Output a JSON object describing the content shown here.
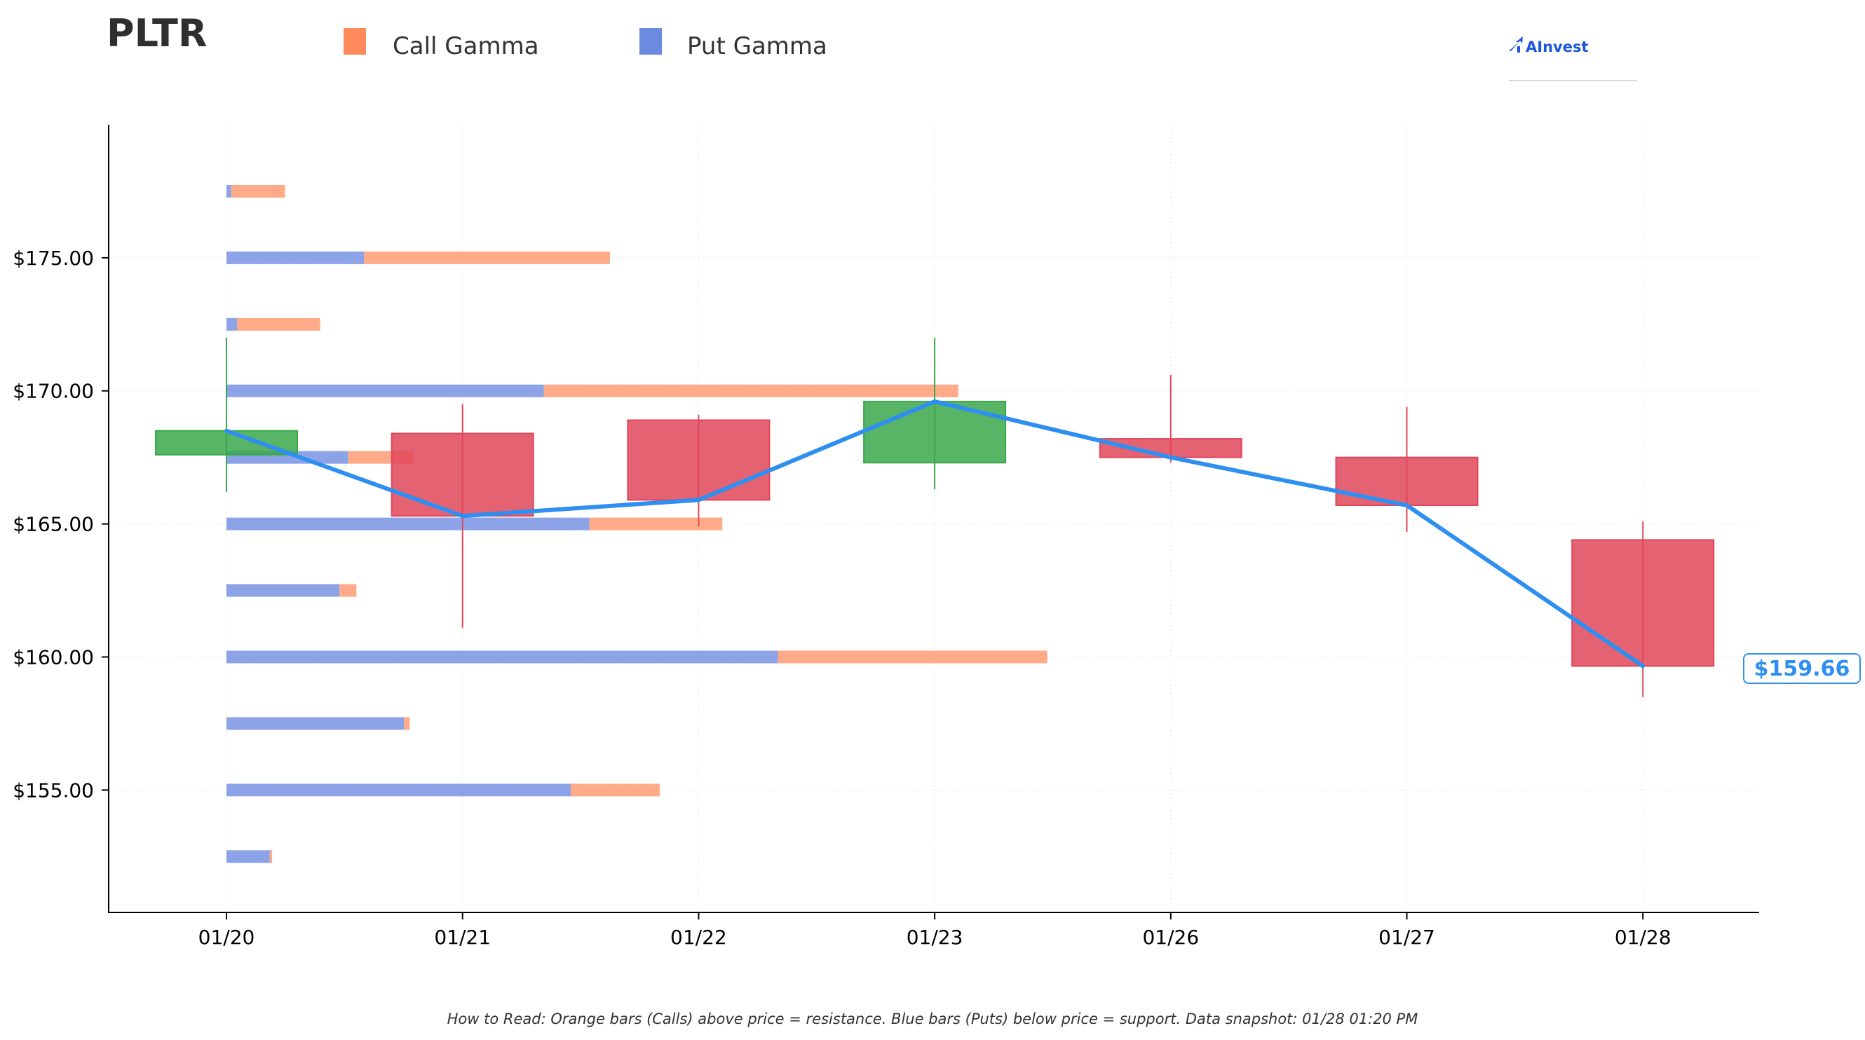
{
  "chart_data": {
    "type": "candlestick",
    "title": "PLTR",
    "legend": {
      "placement": "top",
      "entries": [
        {
          "label": "Call Gamma",
          "color": "#ff8a5c"
        },
        {
          "label": "Put Gamma",
          "color": "#6b8be0"
        }
      ]
    },
    "brand": "AInvest",
    "x_categories": [
      "01/20",
      "01/21",
      "01/22",
      "01/23",
      "01/26",
      "01/27",
      "01/28"
    ],
    "y_ticks": [
      "$155.00",
      "$160.00",
      "$165.00",
      "$170.00",
      "$175.00"
    ],
    "ylim": [
      150.4,
      180.0
    ],
    "grid": true,
    "candles": [
      {
        "date": "01/20",
        "open": 167.6,
        "high": 172.0,
        "low": 166.2,
        "close": 168.5,
        "color": "#3aa84a"
      },
      {
        "date": "01/21",
        "open": 168.4,
        "high": 169.5,
        "low": 161.1,
        "close": 165.3,
        "color": "#e0475a"
      },
      {
        "date": "01/22",
        "open": 168.9,
        "high": 169.1,
        "low": 164.9,
        "close": 165.9,
        "color": "#e0475a"
      },
      {
        "date": "01/23",
        "open": 167.3,
        "high": 172.0,
        "low": 166.3,
        "close": 169.6,
        "color": "#3aa84a"
      },
      {
        "date": "01/26",
        "open": 168.2,
        "high": 170.6,
        "low": 167.3,
        "close": 167.5,
        "color": "#e0475a"
      },
      {
        "date": "01/27",
        "open": 167.5,
        "high": 169.4,
        "low": 164.7,
        "close": 165.7,
        "color": "#e0475a"
      },
      {
        "date": "01/28",
        "open": 164.4,
        "high": 165.1,
        "low": 158.5,
        "close": 159.66,
        "color": "#e0475a"
      }
    ],
    "price_line": {
      "color": "#2f8ff0",
      "values": [
        168.5,
        165.3,
        165.9,
        169.6,
        167.5,
        165.7,
        159.66
      ]
    },
    "gamma_bars": [
      {
        "strike": 177.5,
        "put": 0.08,
        "call": 1.0
      },
      {
        "strike": 175.0,
        "put": 2.35,
        "call": 6.55
      },
      {
        "strike": 172.5,
        "put": 0.18,
        "call": 1.6
      },
      {
        "strike": 170.0,
        "put": 5.42,
        "call": 12.5
      },
      {
        "strike": 167.5,
        "put": 2.08,
        "call": 3.2
      },
      {
        "strike": 165.0,
        "put": 6.2,
        "call": 8.47
      },
      {
        "strike": 162.5,
        "put": 1.93,
        "call": 2.22
      },
      {
        "strike": 160.0,
        "put": 9.42,
        "call": 14.02
      },
      {
        "strike": 157.5,
        "put": 3.03,
        "call": 3.13
      },
      {
        "strike": 155.0,
        "put": 5.88,
        "call": 7.4
      },
      {
        "strike": 152.5,
        "put": 0.74,
        "call": 0.78
      }
    ],
    "last_price_label": "$159.66",
    "footnote": "How to Read: Orange bars (Calls) above price = resistance. Blue bars (Puts) below price = support. Data snapshot: 01/28 01:20 PM"
  }
}
